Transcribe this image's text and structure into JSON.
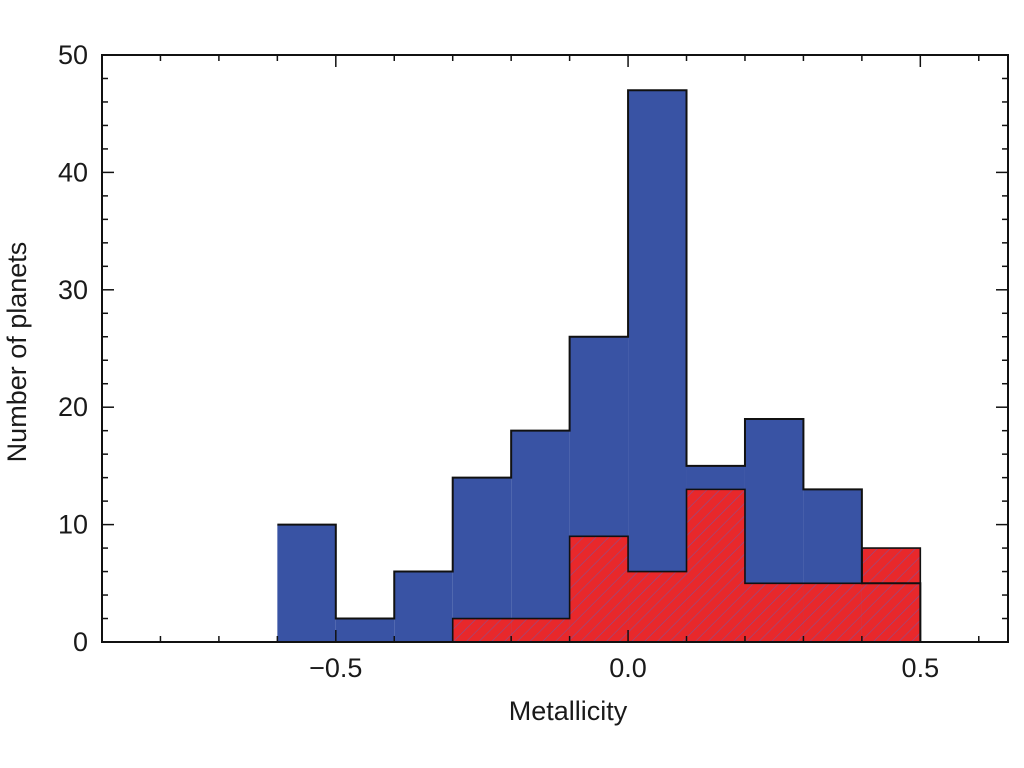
{
  "chart_data": {
    "type": "bar",
    "subtype": "step-histogram",
    "xlabel": "Metallicity",
    "ylabel": "Number of planets",
    "xlim": [
      -0.9,
      0.65
    ],
    "ylim": [
      0,
      50
    ],
    "x_ticks": [
      -0.5,
      0.0,
      0.5
    ],
    "x_tick_labels": [
      "−0.5",
      "0.0",
      "0.5"
    ],
    "y_ticks": [
      0,
      10,
      20,
      30,
      40,
      50
    ],
    "y_tick_labels": [
      "0",
      "10",
      "20",
      "30",
      "40",
      "50"
    ],
    "x_minor_step": 0.1,
    "y_minor_step": 2,
    "grid": false,
    "bin_edges": [
      -0.6,
      -0.5,
      -0.4,
      -0.3,
      -0.2,
      -0.1,
      0.0,
      0.1,
      0.2,
      0.3,
      0.4,
      0.5
    ],
    "series": [
      {
        "values": [
          10,
          2,
          6,
          14,
          18,
          26,
          47,
          15,
          19,
          13,
          5
        ],
        "color": "#3953a4",
        "fill": "solid"
      },
      {
        "values": [
          0,
          0,
          0,
          2,
          2,
          9,
          6,
          13,
          5,
          5,
          8
        ],
        "color": "#e8282b",
        "fill": "hatched",
        "hatch_color": "#8a4f8f"
      }
    ]
  }
}
